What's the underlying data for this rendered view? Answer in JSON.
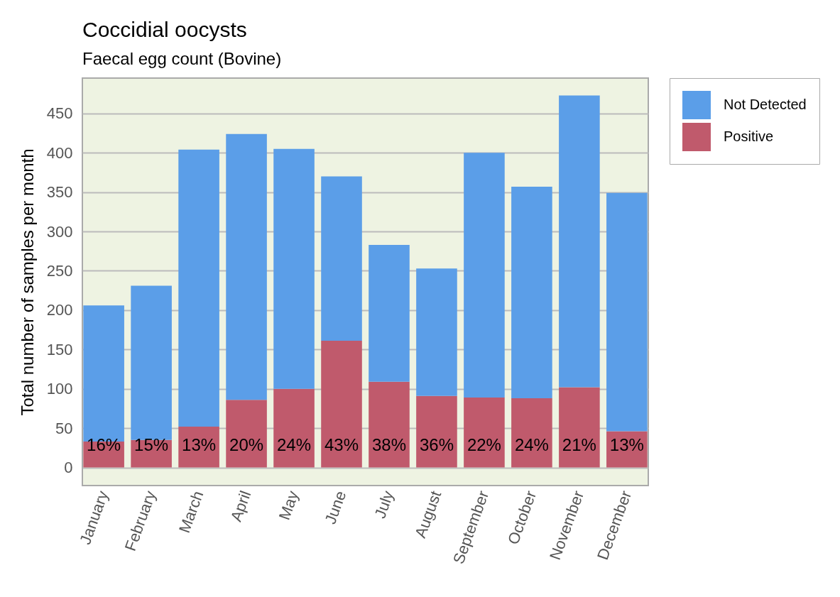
{
  "chart_data": {
    "type": "bar",
    "title": "Coccidial oocysts",
    "subtitle": "Faecal egg count (Bovine)",
    "ylabel": "Total number of samples per month",
    "categories": [
      "January",
      "February",
      "March",
      "April",
      "May",
      "June",
      "July",
      "August",
      "September",
      "October",
      "November",
      "December"
    ],
    "stacked": true,
    "series": [
      {
        "name": "Positive",
        "color": "#c05a6c",
        "values": [
          33,
          35,
          52,
          86,
          100,
          161,
          109,
          91,
          89,
          88,
          102,
          46
        ]
      },
      {
        "name": "Not Detected",
        "color": "#5b9ee8",
        "values": [
          173,
          196,
          352,
          338,
          305,
          209,
          174,
          162,
          311,
          269,
          371,
          303
        ]
      }
    ],
    "annotations": [
      "16%",
      "15%",
      "13%",
      "20%",
      "24%",
      "43%",
      "38%",
      "36%",
      "22%",
      "24%",
      "21%",
      "13%"
    ],
    "ylim": [
      -23,
      495
    ],
    "yticks": [
      0,
      50,
      100,
      150,
      200,
      250,
      300,
      350,
      400,
      450
    ],
    "grid": "y",
    "legend": "right"
  }
}
